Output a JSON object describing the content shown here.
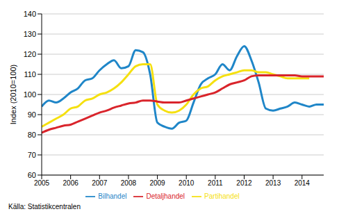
{
  "chart_data": {
    "type": "line",
    "y_label": "Index (2010=100)",
    "annotations": [
      "Källa: Statistikcentralen"
    ],
    "x": [
      2005,
      2005.25,
      2005.5,
      2005.75,
      2006,
      2006.25,
      2006.5,
      2006.75,
      2007,
      2007.25,
      2007.5,
      2007.75,
      2008,
      2008.25,
      2008.5,
      2008.75,
      2009,
      2009.25,
      2009.5,
      2009.75,
      2010,
      2010.25,
      2010.5,
      2010.75,
      2011,
      2011.25,
      2011.5,
      2011.75,
      2012,
      2012.25,
      2012.5,
      2012.75,
      2013,
      2013.25,
      2013.5,
      2013.75,
      2014,
      2014.25,
      2014.5,
      2014.75
    ],
    "series": [
      {
        "name": "Bilhandel",
        "color": "#1f86c8",
        "values": [
          94,
          97,
          96,
          98,
          101,
          103,
          107,
          108,
          112,
          115,
          117,
          113,
          114,
          122,
          121,
          110,
          86,
          84,
          83,
          86,
          87,
          96,
          105,
          108,
          110,
          115,
          112,
          119,
          124,
          117,
          106,
          93,
          92,
          93,
          94,
          96,
          95,
          94,
          95,
          95
        ]
      },
      {
        "name": "Partihandel",
        "color": "#f5e010",
        "values": [
          84,
          86,
          88,
          90,
          93,
          94,
          97,
          98,
          100,
          101,
          103,
          106,
          110,
          114,
          115,
          115,
          95,
          92,
          91,
          92,
          95,
          100,
          103,
          104,
          107,
          109,
          110,
          111,
          112,
          112,
          111,
          111,
          110,
          109,
          108,
          108,
          108,
          108,
          null,
          null
        ]
      },
      {
        "name": "Detaljhandel",
        "color": "#d9242b",
        "values": [
          81,
          82.5,
          83.5,
          84.5,
          85,
          86.5,
          88,
          89.5,
          91,
          92,
          93.5,
          94.5,
          95.5,
          96,
          97,
          97,
          96.5,
          96,
          96,
          96,
          97,
          98,
          99,
          100,
          101,
          103,
          105,
          106,
          107,
          109,
          109.5,
          109.5,
          109.5,
          109.5,
          109.5,
          109.5,
          109,
          109,
          109,
          109
        ]
      }
    ],
    "xlim": [
      2005,
      2014.75
    ],
    "xticks": [
      2005,
      2006,
      2007,
      2008,
      2009,
      2010,
      2011,
      2012,
      2013,
      2014
    ],
    "ylim": [
      60,
      140
    ],
    "yticks": [
      60,
      70,
      80,
      90,
      100,
      110,
      120,
      130,
      140
    ],
    "grid": true,
    "legend": "bottom"
  }
}
